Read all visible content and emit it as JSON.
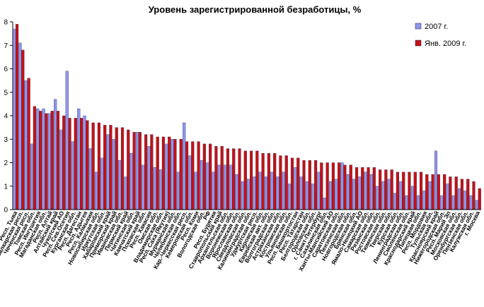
{
  "chart_data": {
    "type": "bar",
    "title": "Уровень зарегистрированной безработицы, %",
    "xlabel": "",
    "ylabel": "",
    "ylim": [
      0,
      8
    ],
    "yticks": [
      0,
      1,
      2,
      3,
      4,
      5,
      6,
      7,
      8
    ],
    "grid": false,
    "legend_position": "right",
    "categories": [
      "Респ. Тыва",
      "Каб.-Балкарская респ.",
      "Чеченская респ.",
      "Томская обл.",
      "Респ. Ингушетия",
      "Магаданская обл.",
      "Респ. Алтай",
      "Алтайский край",
      "Чукотский АО",
      "Респ. Сев.Осетия",
      "Курганская обл.",
      "Респ. Дагестан",
      "Респ. Адыгея",
      "Респ. Калмыкия",
      "Новосибирская обл.",
      "Иркутская обл.",
      "Хабаровский край",
      "Приморский край",
      "Ивановская обл.",
      "Пермский край",
      "Читинская обл.",
      "Камчатский край",
      "Псковская обл.",
      "Респ. Хакасия",
      "Омская обл.",
      "Владимирская обл.",
      "Респ. Саха (Якутия)",
      "Мурманская обл.",
      "Челябинская обл.",
      "Кар.-Черкесская респ.",
      "Кемеровская обл.",
      "Респ. Коми",
      "Вологодская обл.",
      "РФ",
      "Респ. Бурятия",
      "Ставропольский край",
      "Архангельская обл.",
      "Воронежская обл.",
      "Ярославская обл.",
      "Свердловская обл.",
      "Калининградская обл.",
      "Удмуртская респ.",
      "Кировская обл.",
      "Еврейская авт. обл.",
      "Волгоградская обл.",
      "Астраханская обл.",
      "Костромская обл.",
      "Ульяновская обл.",
      "Респ. Башкортостан",
      "Респ. Татарстан",
      "Белгородская обл.",
      "Орловская обл.",
      "г. Санкт-Петербург",
      "Сахалинская обл.",
      "Ханты-Мансийский АО",
      "Саратовская обл.",
      "Пензенская обл.",
      "Новгородская обл.",
      "Брянская обл.",
      "Ямало-Ненецкий АО",
      "Самарская обл.",
      "Рязанская обл.",
      "Ростовская обл.",
      "Тюменская обл.",
      "Тверская обл.",
      "Курская обл.",
      "Ленинградская обл.",
      "Смоленская обл.",
      "Краснодарский край",
      "Липецкая обл.",
      "Респ. Мордовия",
      "Тульская обл.",
      "Красноярский край",
      "Нижегородская обл.",
      "Респ. Марий Эл",
      "Московская обл.",
      "Оренбургская обл.",
      "Пензенская обл.",
      "Калужская обл.",
      "г. Москва"
    ],
    "series": [
      {
        "name": "2007 г.",
        "color": "#8f95e8",
        "values": [
          7.7,
          7.1,
          5.5,
          2.8,
          4.3,
          4.3,
          4.1,
          4.7,
          3.4,
          5.9,
          2.9,
          4.3,
          4.0,
          2.6,
          1.6,
          2.2,
          3.2,
          3.0,
          2.1,
          1.4,
          2.4,
          3.3,
          1.9,
          2.7,
          1.8,
          1.7,
          2.8,
          3.0,
          1.6,
          3.7,
          2.3,
          1.6,
          2.1,
          2.0,
          1.6,
          1.9,
          1.9,
          1.9,
          1.5,
          1.2,
          1.3,
          1.4,
          1.6,
          1.4,
          1.6,
          1.4,
          1.6,
          1.1,
          1.8,
          1.4,
          1.2,
          1.1,
          1.6,
          0.5,
          1.2,
          1.3,
          2.0,
          1.5,
          1.3,
          1.4,
          1.6,
          1.5,
          1.0,
          1.2,
          1.3,
          0.7,
          1.2,
          0.6,
          1.0,
          0.6,
          0.8,
          1.2,
          2.5,
          0.6,
          1.1,
          0.6,
          0.9,
          0.8,
          0.6,
          0.4
        ]
      },
      {
        "name": "Янв. 2009 г.",
        "color": "#c41212",
        "values": [
          7.9,
          6.8,
          5.6,
          4.4,
          4.2,
          4.1,
          4.2,
          4.2,
          4.0,
          3.9,
          3.9,
          3.9,
          3.8,
          3.7,
          3.7,
          3.6,
          3.6,
          3.5,
          3.5,
          3.4,
          3.3,
          3.3,
          3.2,
          3.2,
          3.1,
          3.1,
          3.1,
          3.0,
          3.0,
          2.9,
          2.9,
          2.9,
          2.8,
          2.8,
          2.7,
          2.7,
          2.6,
          2.6,
          2.6,
          2.5,
          2.5,
          2.5,
          2.4,
          2.4,
          2.4,
          2.3,
          2.3,
          2.2,
          2.2,
          2.1,
          2.1,
          2.1,
          2.0,
          2.0,
          2.0,
          2.0,
          1.9,
          1.9,
          1.8,
          1.8,
          1.8,
          1.8,
          1.7,
          1.7,
          1.7,
          1.6,
          1.6,
          1.6,
          1.6,
          1.6,
          1.5,
          1.5,
          1.5,
          1.5,
          1.4,
          1.4,
          1.3,
          1.3,
          1.2,
          0.9
        ]
      }
    ]
  }
}
